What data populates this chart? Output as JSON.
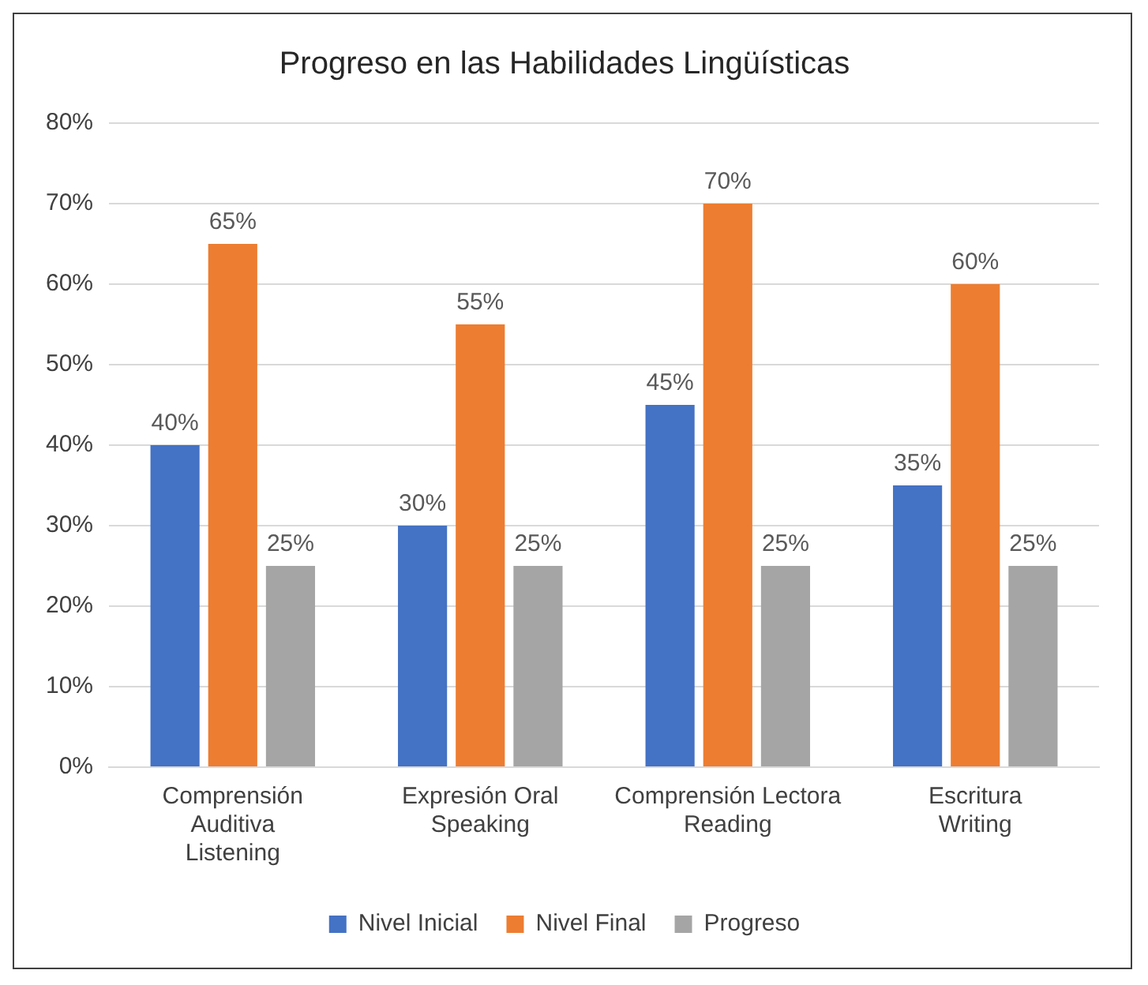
{
  "chart_data": {
    "type": "bar",
    "title": "Progreso en las Habilidades Lingüísticas",
    "categories": [
      "Comprensión\nAuditiva\nListening",
      "Expresión Oral\nSpeaking",
      "Comprensión Lectora\nReading",
      "Escritura\nWriting"
    ],
    "series": [
      {
        "name": "Nivel Inicial",
        "color": "#4472c4",
        "values": [
          40,
          30,
          45,
          35
        ],
        "value_labels": [
          "40%",
          "30%",
          "45%",
          "35%"
        ]
      },
      {
        "name": "Nivel Final",
        "color": "#ed7d31",
        "values": [
          65,
          55,
          70,
          60
        ],
        "value_labels": [
          "65%",
          "55%",
          "70%",
          "60%"
        ]
      },
      {
        "name": "Progreso",
        "color": "#a5a5a5",
        "values": [
          25,
          25,
          25,
          25
        ],
        "value_labels": [
          "25%",
          "25%",
          "25%",
          "25%"
        ]
      }
    ],
    "ylim": [
      0,
      80
    ],
    "yticks": [
      {
        "value": 0,
        "label": "0%"
      },
      {
        "value": 10,
        "label": "10%"
      },
      {
        "value": 20,
        "label": "20%"
      },
      {
        "value": 30,
        "label": "30%"
      },
      {
        "value": 40,
        "label": "40%"
      },
      {
        "value": 50,
        "label": "50%"
      },
      {
        "value": 60,
        "label": "60%"
      },
      {
        "value": 70,
        "label": "70%"
      },
      {
        "value": 80,
        "label": "80%"
      }
    ],
    "grid": "y",
    "legend": "bottom"
  }
}
